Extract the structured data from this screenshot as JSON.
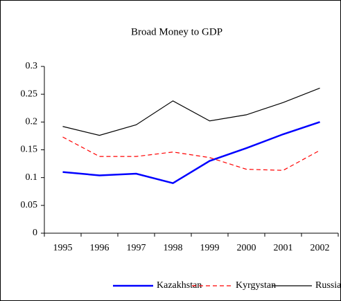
{
  "chart_data": {
    "type": "line",
    "title": "Broad Money to GDP",
    "categories": [
      "1995",
      "1996",
      "1997",
      "1998",
      "1999",
      "2000",
      "2001",
      "2002"
    ],
    "series": [
      {
        "name": "Kazakhstan",
        "color": "#0000ff",
        "values": [
          0.11,
          0.104,
          0.107,
          0.09,
          0.13,
          0.153,
          0.178,
          0.2
        ]
      },
      {
        "name": "Kyrgystan",
        "color": "#ff0000",
        "values": [
          0.173,
          0.138,
          0.138,
          0.146,
          0.136,
          0.115,
          0.113,
          0.149
        ]
      },
      {
        "name": "Russia",
        "color": "#000000",
        "values": [
          0.192,
          0.176,
          0.195,
          0.238,
          0.202,
          0.213,
          0.235,
          0.261
        ]
      }
    ],
    "ylim": [
      0,
      0.3
    ],
    "yticks": [
      0,
      0.05,
      0.1,
      0.15,
      0.2,
      0.25,
      0.3
    ],
    "grid": false,
    "legend": "bottom"
  }
}
